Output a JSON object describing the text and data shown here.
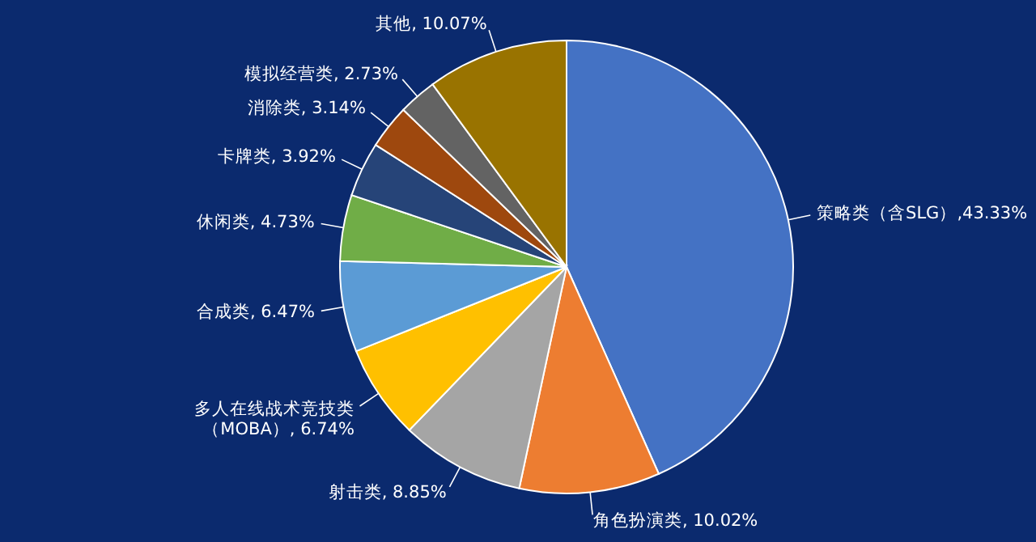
{
  "chart_data": {
    "type": "pie",
    "categories": [
      "策略类（含SLG）",
      "角色扮演类",
      "射击类",
      "多人在线战术竞技类（MOBA）",
      "合成类",
      "休闲类",
      "卡牌类",
      "消除类",
      "模拟经营类",
      "其他"
    ],
    "values": [
      43.33,
      10.02,
      8.85,
      6.74,
      6.47,
      4.73,
      3.92,
      3.14,
      2.73,
      10.07
    ],
    "colors": [
      "#4472c4",
      "#ed7d31",
      "#a5a5a5",
      "#ffc000",
      "#5b9bd5",
      "#70ad47",
      "#264478",
      "#9e480e",
      "#636363",
      "#997300"
    ],
    "value_labels": [
      ",43.33%",
      ", 10.02%",
      ", 8.85%",
      ", 6.74%",
      ", 6.47%",
      ", 4.73%",
      ", 3.92%",
      ", 3.14%",
      ", 2.73%",
      ", 10.07%"
    ]
  }
}
